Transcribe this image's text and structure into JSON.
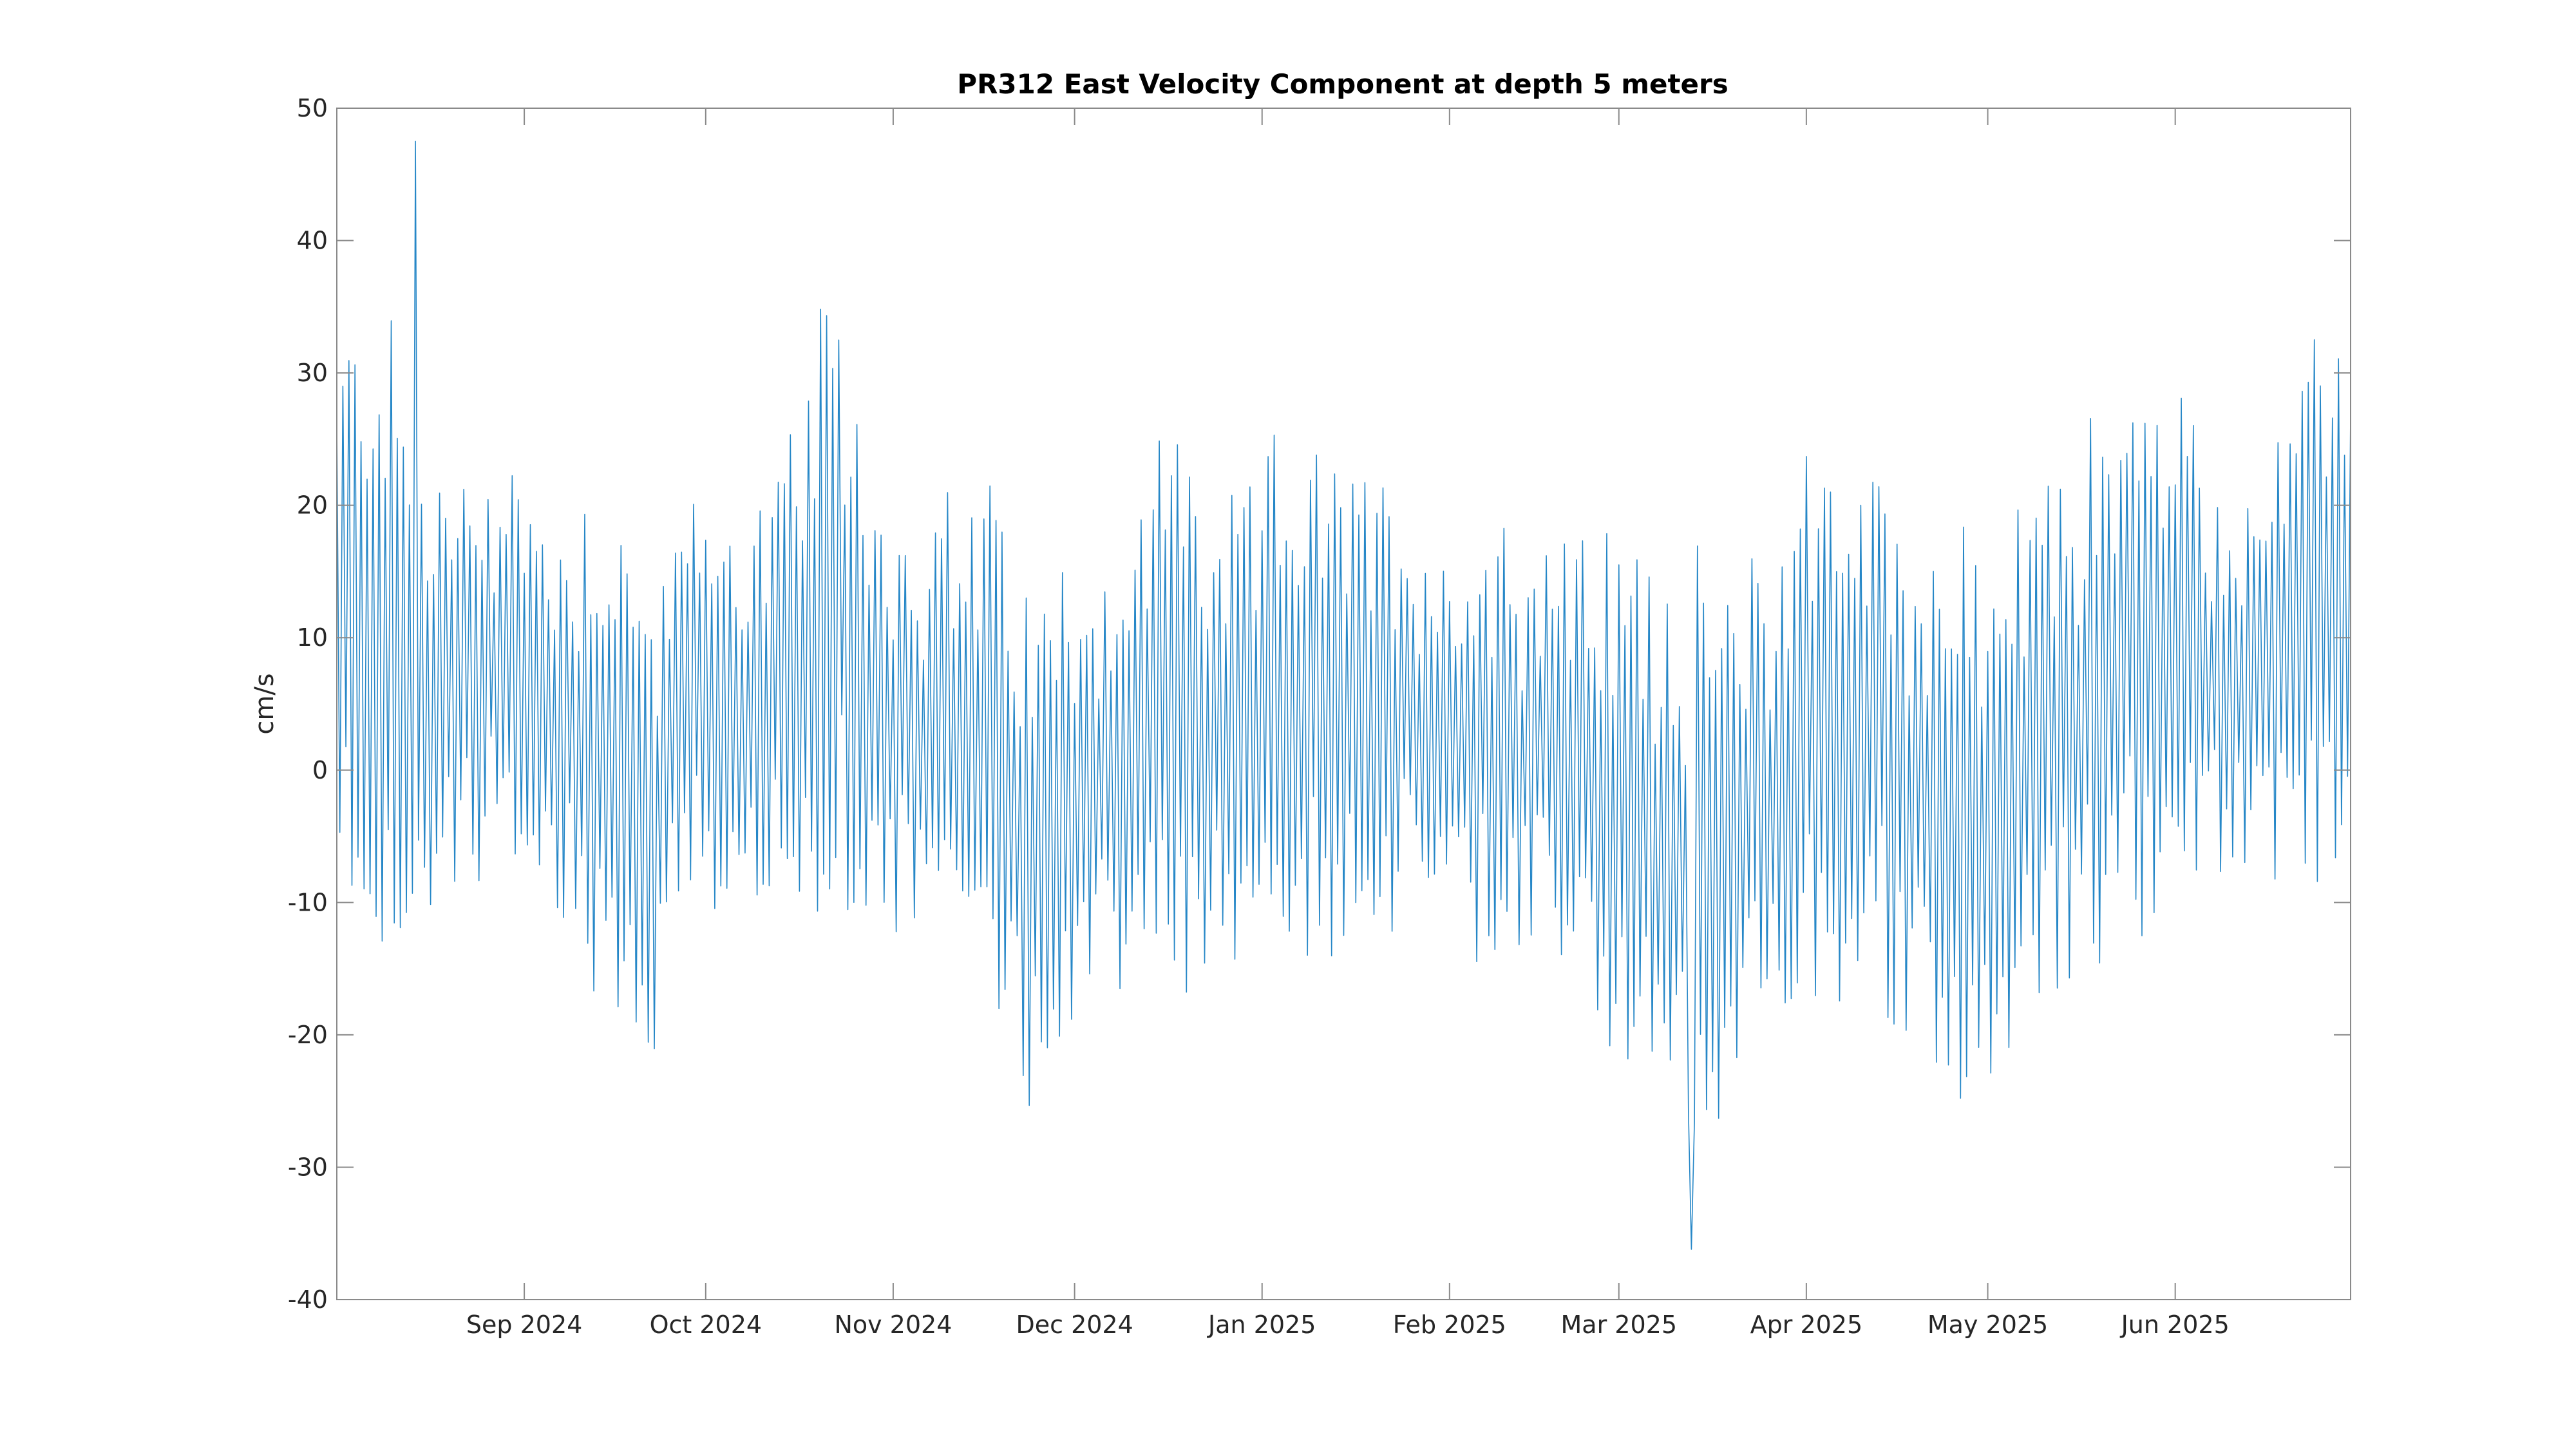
{
  "chart_data": {
    "type": "line",
    "title": "PR312 East Velocity Component at depth 5 meters",
    "xlabel": "",
    "ylabel": "cm/s",
    "ylim": [
      -40,
      50
    ],
    "xlim": [
      "2024-08-01",
      "2025-06-30"
    ],
    "grid": false,
    "yticks": [
      50,
      40,
      30,
      20,
      10,
      0,
      -10,
      -20,
      -30,
      -40
    ],
    "ytick_labels": [
      "50",
      "40",
      "30",
      "20",
      "10",
      "0",
      "-10",
      "-20",
      "-30",
      "-40"
    ],
    "xticks": [
      "2024-09-01",
      "2024-10-01",
      "2024-11-01",
      "2024-12-01",
      "2025-01-01",
      "2025-02-01",
      "2025-03-01",
      "2025-04-01",
      "2025-05-01",
      "2025-06-01"
    ],
    "xtick_labels": [
      "Sep 2024",
      "Oct 2024",
      "Nov 2024",
      "Dec 2024",
      "Jan 2025",
      "Feb 2025",
      "Mar 2025",
      "Apr 2025",
      "May 2025",
      "Jun 2025"
    ],
    "line_color": "#0072bd",
    "sampling": "twice daily (approximate tidal signal)",
    "series": [
      {
        "name": "",
        "x": [
          "2024-08-01",
          "2024-08-05",
          "2024-08-09",
          "2024-08-13",
          "2024-08-17",
          "2024-08-21",
          "2024-08-25",
          "2024-08-29",
          "2024-09-02",
          "2024-09-06",
          "2024-09-10",
          "2024-09-14",
          "2024-09-18",
          "2024-09-22",
          "2024-09-26",
          "2024-09-30",
          "2024-10-04",
          "2024-10-08",
          "2024-10-12",
          "2024-10-16",
          "2024-10-20",
          "2024-10-24",
          "2024-10-28",
          "2024-11-01",
          "2024-11-05",
          "2024-11-09",
          "2024-11-13",
          "2024-11-17",
          "2024-11-21",
          "2024-11-25",
          "2024-11-29",
          "2024-12-03",
          "2024-12-07",
          "2024-12-11",
          "2024-12-15",
          "2024-12-19",
          "2024-12-23",
          "2024-12-27",
          "2024-12-31",
          "2025-01-04",
          "2025-01-08",
          "2025-01-12",
          "2025-01-16",
          "2025-01-20",
          "2025-01-24",
          "2025-01-28",
          "2025-02-01",
          "2025-02-05",
          "2025-02-09",
          "2025-02-13",
          "2025-02-17",
          "2025-02-21",
          "2025-02-25",
          "2025-03-01",
          "2025-03-05",
          "2025-03-09",
          "2025-03-13",
          "2025-03-17",
          "2025-03-21",
          "2025-03-25",
          "2025-03-29",
          "2025-04-02",
          "2025-04-06",
          "2025-04-10",
          "2025-04-14",
          "2025-04-18",
          "2025-04-22",
          "2025-04-26",
          "2025-04-30",
          "2025-05-04",
          "2025-05-08",
          "2025-05-12",
          "2025-05-16",
          "2025-05-20",
          "2025-05-24",
          "2025-05-28",
          "2025-06-01",
          "2025-06-05",
          "2025-06-09",
          "2025-06-13",
          "2025-06-17",
          "2025-06-21",
          "2025-06-25",
          "2025-06-30"
        ],
        "mean": [
          10,
          12,
          11,
          7,
          6,
          5,
          8,
          7,
          6,
          4,
          3,
          2,
          -2,
          -4,
          3,
          5,
          4,
          5,
          4,
          6,
          10,
          12,
          6,
          4,
          3,
          3,
          2,
          2,
          -4,
          -6,
          -2,
          1,
          0,
          0,
          4,
          6,
          2,
          3,
          4,
          6,
          6,
          4,
          6,
          5,
          5,
          4,
          2,
          2,
          3,
          2,
          2,
          1,
          0,
          -3,
          -4,
          -5,
          -6,
          -6,
          -4,
          -3,
          0,
          4,
          3,
          3,
          2,
          -2,
          -3,
          -4,
          -3,
          -2,
          0,
          3,
          4,
          6,
          8,
          9,
          10,
          8,
          6,
          7,
          8,
          9,
          12,
          14
        ],
        "amplitude": [
          22,
          24,
          26,
          20,
          18,
          16,
          16,
          18,
          16,
          15,
          18,
          20,
          22,
          19,
          14,
          16,
          16,
          17,
          18,
          20,
          24,
          22,
          18,
          16,
          17,
          18,
          18,
          20,
          22,
          19,
          18,
          16,
          16,
          18,
          22,
          24,
          18,
          16,
          18,
          20,
          19,
          18,
          19,
          17,
          16,
          15,
          15,
          16,
          17,
          16,
          16,
          17,
          18,
          20,
          22,
          22,
          22,
          20,
          19,
          20,
          22,
          24,
          21,
          20,
          21,
          22,
          22,
          21,
          20,
          20,
          20,
          21,
          21,
          22,
          22,
          20,
          19,
          17,
          16,
          16,
          16,
          17,
          22,
          24
        ]
      }
    ],
    "extremes": {
      "max": [
        47.5,
        "2024-08-14"
      ],
      "min": [
        -36.2,
        "2025-03-13"
      ]
    }
  }
}
